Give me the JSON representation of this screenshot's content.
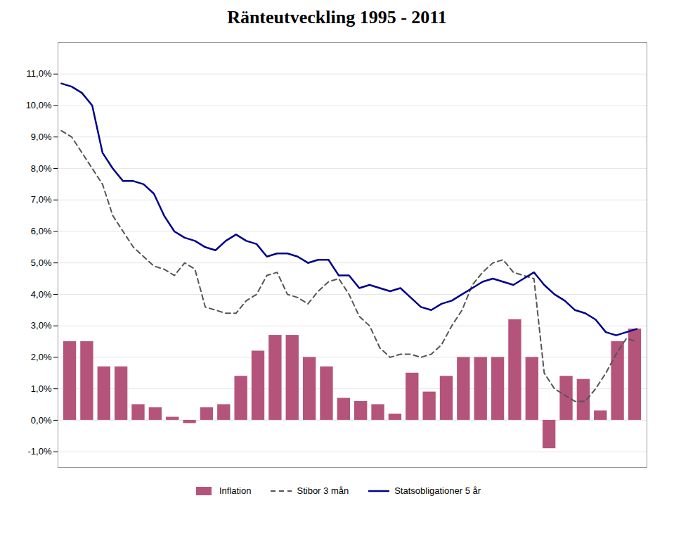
{
  "chart_data": {
    "type": "bar",
    "title": "Ränteutveckling 1995  -  2011",
    "xlim": [
      1994.9,
      2012.1
    ],
    "ylim": [
      -1.5,
      12.0
    ],
    "yticks": [
      {
        "value": -1.0,
        "label": "-1,0%"
      },
      {
        "value": 0.0,
        "label": "0,0%"
      },
      {
        "value": 1.0,
        "label": "1,0%"
      },
      {
        "value": 2.0,
        "label": "2,0%"
      },
      {
        "value": 3.0,
        "label": "3,0%"
      },
      {
        "value": 4.0,
        "label": "4,0%"
      },
      {
        "value": 5.0,
        "label": "5,0%"
      },
      {
        "value": 6.0,
        "label": "6,0%"
      },
      {
        "value": 7.0,
        "label": "7,0%"
      },
      {
        "value": 8.0,
        "label": "8,0%"
      },
      {
        "value": 9.0,
        "label": "9,0%"
      },
      {
        "value": 10.0,
        "label": "10,0%"
      },
      {
        "value": 11.0,
        "label": "11,0%"
      }
    ],
    "grid": true,
    "legend": "bottom",
    "tick_labels": "y",
    "series": [
      {
        "name": "Inflation",
        "type": "bar",
        "color": "#b5547a",
        "x": [
          1995.25,
          1995.75,
          1996.25,
          1996.75,
          1997.25,
          1997.75,
          1998.25,
          1998.75,
          1999.25,
          1999.75,
          2000.25,
          2000.75,
          2001.25,
          2001.75,
          2002.25,
          2002.75,
          2003.25,
          2003.75,
          2004.25,
          2004.75,
          2005.25,
          2005.75,
          2006.25,
          2006.75,
          2007.25,
          2007.75,
          2008.25,
          2008.75,
          2009.25,
          2009.75,
          2010.25,
          2010.75,
          2011.25,
          2011.75
        ],
        "values": [
          2.5,
          2.5,
          1.7,
          1.7,
          0.5,
          0.4,
          0.1,
          -0.1,
          0.4,
          0.5,
          1.4,
          2.2,
          2.7,
          2.7,
          2.0,
          1.7,
          0.7,
          0.6,
          0.5,
          0.2,
          1.5,
          0.9,
          1.4,
          2.0,
          2.0,
          2.0,
          3.2,
          2.0,
          -0.9,
          1.4,
          1.3,
          0.3,
          2.5,
          2.9
        ]
      },
      {
        "name": "Stibor 3 mån",
        "type": "line",
        "color": "#555555",
        "line_style": "dashed",
        "x": [
          1995.0,
          1995.3,
          1995.6,
          1995.9,
          1996.2,
          1996.5,
          1996.8,
          1997.1,
          1997.4,
          1997.7,
          1998.0,
          1998.3,
          1998.6,
          1998.9,
          1999.2,
          1999.5,
          1999.8,
          2000.1,
          2000.4,
          2000.7,
          2001.0,
          2001.3,
          2001.6,
          2001.9,
          2002.2,
          2002.5,
          2002.8,
          2003.1,
          2003.4,
          2003.7,
          2004.0,
          2004.3,
          2004.6,
          2004.9,
          2005.2,
          2005.5,
          2005.8,
          2006.1,
          2006.4,
          2006.7,
          2007.0,
          2007.3,
          2007.6,
          2007.9,
          2008.2,
          2008.5,
          2008.8,
          2009.1,
          2009.4,
          2009.7,
          2010.0,
          2010.3,
          2010.6,
          2010.9,
          2011.2,
          2011.5,
          2011.8
        ],
        "values": [
          9.2,
          9.0,
          8.5,
          8.0,
          7.5,
          6.5,
          6.0,
          5.5,
          5.2,
          4.9,
          4.8,
          4.6,
          5.0,
          4.8,
          3.6,
          3.5,
          3.4,
          3.4,
          3.8,
          4.0,
          4.6,
          4.7,
          4.0,
          3.9,
          3.7,
          4.1,
          4.4,
          4.5,
          4.0,
          3.3,
          3.0,
          2.3,
          2.0,
          2.1,
          2.1,
          2.0,
          2.1,
          2.4,
          3.0,
          3.5,
          4.3,
          4.7,
          5.0,
          5.1,
          4.7,
          4.6,
          4.5,
          1.5,
          1.0,
          0.8,
          0.6,
          0.6,
          1.0,
          1.5,
          2.1,
          2.6,
          2.5
        ]
      },
      {
        "name": "Statsobligationer 5 år",
        "type": "line",
        "color": "#00008B",
        "line_style": "solid",
        "x": [
          1995.0,
          1995.3,
          1995.6,
          1995.9,
          1996.2,
          1996.5,
          1996.8,
          1997.1,
          1997.4,
          1997.7,
          1998.0,
          1998.3,
          1998.6,
          1998.9,
          1999.2,
          1999.5,
          1999.8,
          2000.1,
          2000.4,
          2000.7,
          2001.0,
          2001.3,
          2001.6,
          2001.9,
          2002.2,
          2002.5,
          2002.8,
          2003.1,
          2003.4,
          2003.7,
          2004.0,
          2004.3,
          2004.6,
          2004.9,
          2005.2,
          2005.5,
          2005.8,
          2006.1,
          2006.4,
          2006.7,
          2007.0,
          2007.3,
          2007.6,
          2007.9,
          2008.2,
          2008.5,
          2008.8,
          2009.1,
          2009.4,
          2009.7,
          2010.0,
          2010.3,
          2010.6,
          2010.9,
          2011.2,
          2011.5,
          2011.8
        ],
        "values": [
          10.7,
          10.6,
          10.4,
          10.0,
          8.5,
          8.0,
          7.6,
          7.6,
          7.5,
          7.2,
          6.5,
          6.0,
          5.8,
          5.7,
          5.5,
          5.4,
          5.7,
          5.9,
          5.7,
          5.6,
          5.2,
          5.3,
          5.3,
          5.2,
          5.0,
          5.1,
          5.1,
          4.6,
          4.6,
          4.2,
          4.3,
          4.2,
          4.1,
          4.2,
          3.9,
          3.6,
          3.5,
          3.7,
          3.8,
          4.0,
          4.2,
          4.4,
          4.5,
          4.4,
          4.3,
          4.5,
          4.7,
          4.3,
          4.0,
          3.8,
          3.5,
          3.4,
          3.2,
          2.8,
          2.7,
          2.8,
          2.9
        ]
      }
    ]
  }
}
